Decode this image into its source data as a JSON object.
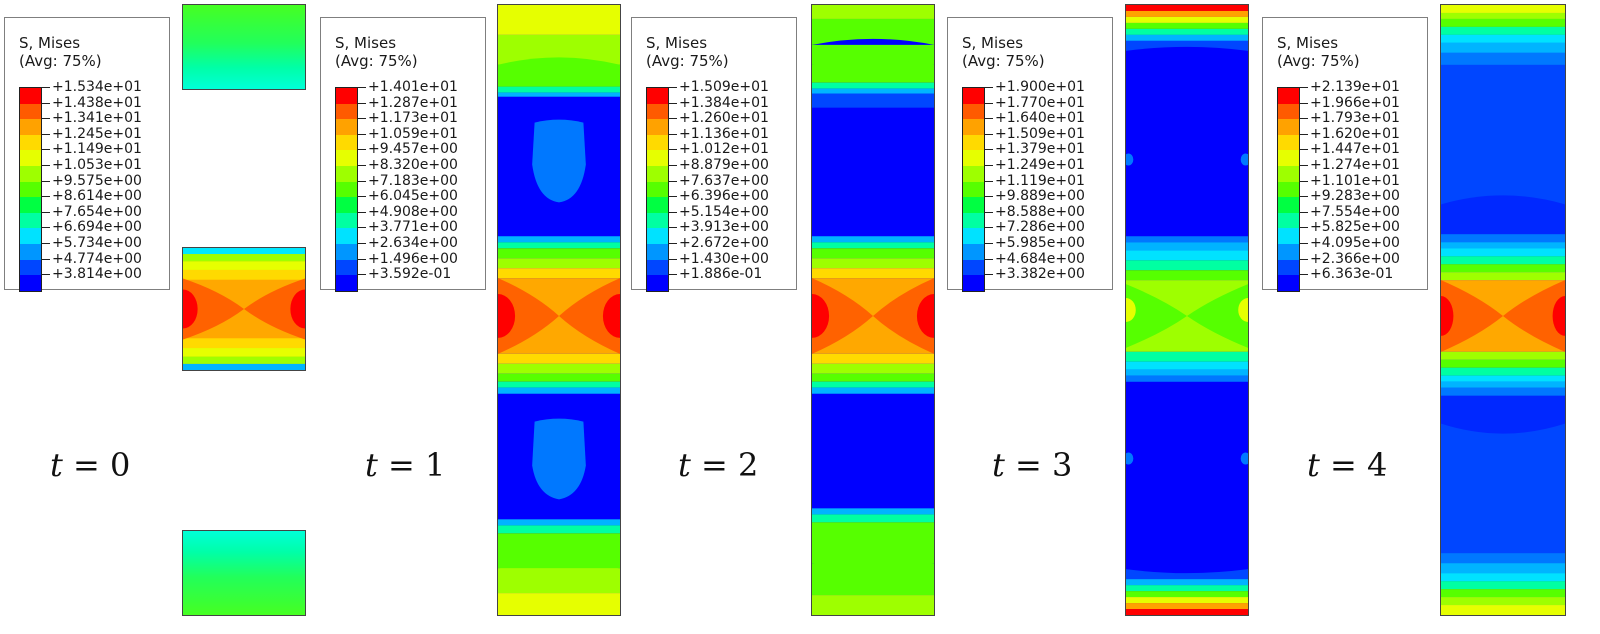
{
  "palette": [
    "#ff0000",
    "#ff5a00",
    "#ffa200",
    "#ffda00",
    "#e6ff00",
    "#9eff00",
    "#56ff00",
    "#00ff42",
    "#00ffa2",
    "#00e2ff",
    "#0096ff",
    "#0046ff",
    "#0000ff"
  ],
  "frames": [
    {
      "time_label": "t = 0",
      "legend": {
        "title": "S, Mises",
        "subtitle": "(Avg: 75%)",
        "values": [
          "+1.534e+01",
          "+1.438e+01",
          "+1.341e+01",
          "+1.245e+01",
          "+1.149e+01",
          "+1.053e+01",
          "+9.575e+00",
          "+8.614e+00",
          "+7.654e+00",
          "+6.694e+00",
          "+5.734e+00",
          "+4.774e+00",
          "+3.814e+00"
        ]
      }
    },
    {
      "time_label": "t = 1",
      "legend": {
        "title": "S, Mises",
        "subtitle": "(Avg: 75%)",
        "values": [
          "+1.401e+01",
          "+1.287e+01",
          "+1.173e+01",
          "+1.059e+01",
          "+9.457e+00",
          "+8.320e+00",
          "+7.183e+00",
          "+6.045e+00",
          "+4.908e+00",
          "+3.771e+00",
          "+2.634e+00",
          "+1.496e+00",
          "+3.592e-01"
        ]
      }
    },
    {
      "time_label": "t = 2",
      "legend": {
        "title": "S, Mises",
        "subtitle": "(Avg: 75%)",
        "values": [
          "+1.509e+01",
          "+1.384e+01",
          "+1.260e+01",
          "+1.136e+01",
          "+1.012e+01",
          "+8.879e+00",
          "+7.637e+00",
          "+6.396e+00",
          "+5.154e+00",
          "+3.913e+00",
          "+2.672e+00",
          "+1.430e+00",
          "+1.886e-01"
        ]
      }
    },
    {
      "time_label": "t = 3",
      "legend": {
        "title": "S, Mises",
        "subtitle": "(Avg: 75%)",
        "values": [
          "+1.900e+01",
          "+1.770e+01",
          "+1.640e+01",
          "+1.509e+01",
          "+1.379e+01",
          "+1.249e+01",
          "+1.119e+01",
          "+9.889e+00",
          "+8.588e+00",
          "+7.286e+00",
          "+5.985e+00",
          "+4.684e+00",
          "+3.382e+00"
        ]
      }
    },
    {
      "time_label": "t = 4",
      "legend": {
        "title": "S, Mises",
        "subtitle": "(Avg: 75%)",
        "values": [
          "+2.139e+01",
          "+1.966e+01",
          "+1.793e+01",
          "+1.620e+01",
          "+1.447e+01",
          "+1.274e+01",
          "+1.101e+01",
          "+9.283e+00",
          "+7.554e+00",
          "+5.825e+00",
          "+4.095e+00",
          "+2.366e+00",
          "+6.363e-01"
        ]
      }
    }
  ]
}
